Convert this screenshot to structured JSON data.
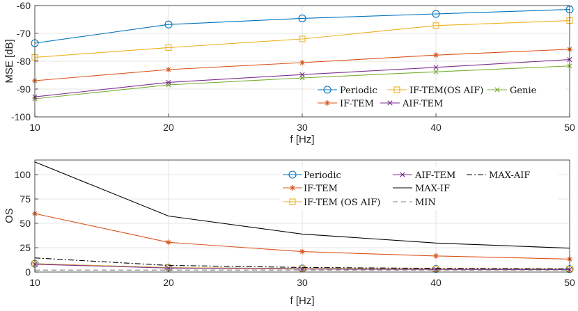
{
  "chart_data": [
    {
      "type": "line",
      "title": "",
      "xlabel": "f [Hz]",
      "ylabel": "MSE [dB]",
      "x": [
        10,
        20,
        30,
        40,
        50
      ],
      "xlim": [
        10,
        50
      ],
      "ylim": [
        -100,
        -60
      ],
      "xticks": [
        "10",
        "20",
        "30",
        "40",
        "50"
      ],
      "yticks": [
        "-100",
        "-90",
        "-80",
        "-70",
        "-60"
      ],
      "ytick_values": [
        -100,
        -90,
        -80,
        -70,
        -60
      ],
      "grid": true,
      "legend_position": "bottom-right",
      "series": [
        {
          "name": "Periodic",
          "values": [
            -73.5,
            -66.8,
            -64.6,
            -63.0,
            -61.4
          ],
          "color": "#0072BD",
          "marker": "circle"
        },
        {
          "name": "IF-TEM(OS AIF)",
          "values": [
            -78.6,
            -75.1,
            -72.0,
            -67.2,
            -65.4
          ],
          "color": "#EDB120",
          "marker": "square"
        },
        {
          "name": "Genie",
          "values": [
            -93.5,
            -88.5,
            -86.0,
            -83.8,
            -81.7
          ],
          "color": "#77AC30",
          "marker": "x"
        },
        {
          "name": "IF-TEM",
          "values": [
            -87.0,
            -83.0,
            -80.5,
            -77.8,
            -75.7
          ],
          "color": "#D95319",
          "marker": "asterisk"
        },
        {
          "name": "AIF-TEM",
          "values": [
            -92.8,
            -87.6,
            -84.8,
            -82.2,
            -79.4
          ],
          "color": "#7E2F8E",
          "marker": "x"
        }
      ]
    },
    {
      "type": "line",
      "title": "",
      "xlabel": "f [Hz]",
      "ylabel": "OS",
      "x": [
        10,
        20,
        30,
        40,
        50
      ],
      "xlim": [
        10,
        50
      ],
      "ylim": [
        0,
        115
      ],
      "xticks": [
        "10",
        "20",
        "30",
        "40",
        "50"
      ],
      "yticks": [
        "0",
        "25",
        "50",
        "75",
        "100"
      ],
      "ytick_values": [
        0,
        25,
        50,
        75,
        100
      ],
      "grid": true,
      "legend_position": "top-right",
      "series": [
        {
          "name": "Periodic",
          "values": [
            8.5,
            4.5,
            3.6,
            3.2,
            3.0
          ],
          "color": "#0072BD",
          "marker": "circle"
        },
        {
          "name": "IF-TEM",
          "values": [
            60.0,
            30.5,
            21.0,
            16.5,
            13.3
          ],
          "color": "#D95319",
          "marker": "asterisk"
        },
        {
          "name": "IF-TEM (OS AIF)",
          "values": [
            8.5,
            4.5,
            3.6,
            3.2,
            3.0
          ],
          "color": "#EDB120",
          "marker": "square"
        },
        {
          "name": "AIF-TEM",
          "values": [
            8.0,
            4.1,
            3.1,
            2.7,
            2.5
          ],
          "color": "#7E2F8E",
          "marker": "x"
        },
        {
          "name": "MAX-IF",
          "values": [
            113.0,
            57.5,
            39.0,
            29.8,
            24.5
          ],
          "color": "#000000",
          "marker": "none",
          "dash": "solid"
        },
        {
          "name": "MIN",
          "values": [
            2.0,
            2.0,
            2.0,
            2.0,
            2.0
          ],
          "color": "#808080",
          "marker": "none",
          "dash": "dashed"
        },
        {
          "name": "MAX-AIF",
          "values": [
            14.5,
            6.8,
            4.7,
            3.8,
            3.3
          ],
          "color": "#000000",
          "marker": "none",
          "dash": "dashdot"
        }
      ]
    }
  ]
}
